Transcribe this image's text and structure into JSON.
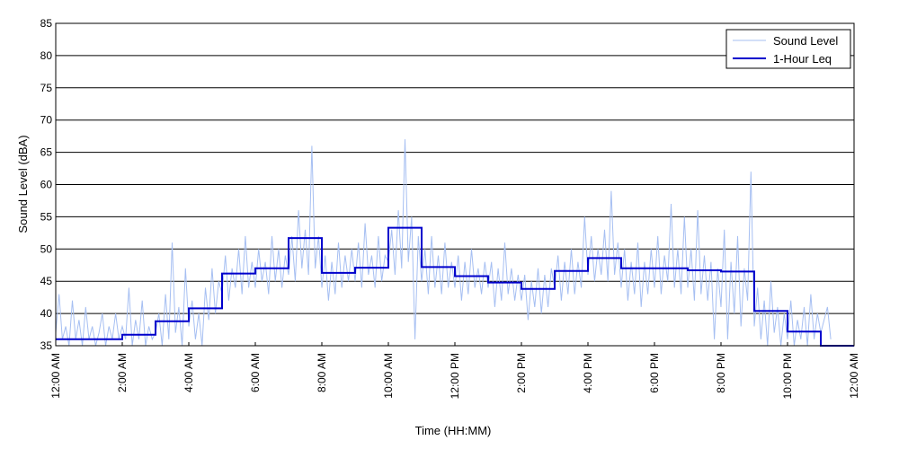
{
  "colors": {
    "background": "#ffffff",
    "grid": "#000000",
    "raw_series": "#a6bff2",
    "leq_series": "#0000cc"
  },
  "chart_data": {
    "type": "line",
    "title": "",
    "xlabel": "Time (HH:MM)",
    "ylabel": "Sound Level (dBA)",
    "xlim": [
      0,
      24
    ],
    "ylim": [
      35,
      85
    ],
    "grid": "horizontal",
    "legend_position": "top-right",
    "y_ticks": [
      35,
      40,
      45,
      50,
      55,
      60,
      65,
      70,
      75,
      80,
      85
    ],
    "x_ticks": [
      {
        "hour": 0,
        "label": "12:00 AM"
      },
      {
        "hour": 2,
        "label": "2:00 AM"
      },
      {
        "hour": 4,
        "label": "4:00 AM"
      },
      {
        "hour": 6,
        "label": "6:00 AM"
      },
      {
        "hour": 8,
        "label": "8:00 AM"
      },
      {
        "hour": 10,
        "label": "10:00 AM"
      },
      {
        "hour": 12,
        "label": "12:00 PM"
      },
      {
        "hour": 14,
        "label": "2:00 PM"
      },
      {
        "hour": 16,
        "label": "4:00 PM"
      },
      {
        "hour": 18,
        "label": "6:00 PM"
      },
      {
        "hour": 20,
        "label": "8:00 PM"
      },
      {
        "hour": 22,
        "label": "10:00 PM"
      },
      {
        "hour": 24,
        "label": "12:00 AM"
      }
    ],
    "series": [
      {
        "name": "Sound Level",
        "kind": "raw",
        "note": "approximate envelope samples (hour, dBA) of the fluctuating measurement trace",
        "points": [
          [
            0.0,
            37
          ],
          [
            0.1,
            43
          ],
          [
            0.2,
            36
          ],
          [
            0.3,
            38
          ],
          [
            0.4,
            35
          ],
          [
            0.5,
            42
          ],
          [
            0.6,
            36
          ],
          [
            0.7,
            39
          ],
          [
            0.8,
            35
          ],
          [
            0.9,
            41
          ],
          [
            1.0,
            36
          ],
          [
            1.1,
            38
          ],
          [
            1.2,
            35
          ],
          [
            1.3,
            37
          ],
          [
            1.4,
            40
          ],
          [
            1.5,
            35
          ],
          [
            1.6,
            38
          ],
          [
            1.7,
            36
          ],
          [
            1.8,
            40
          ],
          [
            1.9,
            36
          ],
          [
            2.0,
            38
          ],
          [
            2.1,
            36
          ],
          [
            2.2,
            44
          ],
          [
            2.3,
            35
          ],
          [
            2.4,
            39
          ],
          [
            2.5,
            36
          ],
          [
            2.6,
            42
          ],
          [
            2.7,
            35
          ],
          [
            2.8,
            38
          ],
          [
            2.9,
            36
          ],
          [
            3.0,
            37
          ],
          [
            3.1,
            40
          ],
          [
            3.2,
            35
          ],
          [
            3.3,
            43
          ],
          [
            3.4,
            36
          ],
          [
            3.5,
            51
          ],
          [
            3.6,
            37
          ],
          [
            3.7,
            41
          ],
          [
            3.8,
            35
          ],
          [
            3.9,
            47
          ],
          [
            4.0,
            38
          ],
          [
            4.1,
            42
          ],
          [
            4.2,
            36
          ],
          [
            4.3,
            40
          ],
          [
            4.4,
            35
          ],
          [
            4.5,
            44
          ],
          [
            4.6,
            39
          ],
          [
            4.7,
            47
          ],
          [
            4.8,
            40
          ],
          [
            4.9,
            45
          ],
          [
            5.0,
            43
          ],
          [
            5.1,
            49
          ],
          [
            5.2,
            42
          ],
          [
            5.3,
            47
          ],
          [
            5.4,
            44
          ],
          [
            5.5,
            50
          ],
          [
            5.6,
            43
          ],
          [
            5.7,
            52
          ],
          [
            5.8,
            44
          ],
          [
            5.9,
            48
          ],
          [
            6.0,
            44
          ],
          [
            6.1,
            50
          ],
          [
            6.2,
            45
          ],
          [
            6.3,
            48
          ],
          [
            6.4,
            43
          ],
          [
            6.5,
            52
          ],
          [
            6.6,
            45
          ],
          [
            6.7,
            50
          ],
          [
            6.8,
            44
          ],
          [
            6.9,
            49
          ],
          [
            7.0,
            46
          ],
          [
            7.1,
            52
          ],
          [
            7.2,
            45
          ],
          [
            7.3,
            56
          ],
          [
            7.4,
            47
          ],
          [
            7.5,
            53
          ],
          [
            7.6,
            46
          ],
          [
            7.7,
            66
          ],
          [
            7.8,
            47
          ],
          [
            7.9,
            52
          ],
          [
            8.0,
            44
          ],
          [
            8.1,
            49
          ],
          [
            8.2,
            42
          ],
          [
            8.3,
            48
          ],
          [
            8.4,
            43
          ],
          [
            8.5,
            51
          ],
          [
            8.6,
            44
          ],
          [
            8.7,
            49
          ],
          [
            8.8,
            45
          ],
          [
            8.9,
            50
          ],
          [
            9.0,
            45
          ],
          [
            9.1,
            51
          ],
          [
            9.2,
            44
          ],
          [
            9.3,
            54
          ],
          [
            9.4,
            46
          ],
          [
            9.5,
            49
          ],
          [
            9.6,
            44
          ],
          [
            9.7,
            52
          ],
          [
            9.8,
            45
          ],
          [
            9.9,
            49
          ],
          [
            10.0,
            48
          ],
          [
            10.1,
            53
          ],
          [
            10.2,
            46
          ],
          [
            10.3,
            56
          ],
          [
            10.4,
            47
          ],
          [
            10.5,
            67
          ],
          [
            10.6,
            48
          ],
          [
            10.7,
            55
          ],
          [
            10.8,
            36
          ],
          [
            10.9,
            52
          ],
          [
            11.0,
            45
          ],
          [
            11.1,
            50
          ],
          [
            11.2,
            43
          ],
          [
            11.3,
            52
          ],
          [
            11.4,
            44
          ],
          [
            11.5,
            49
          ],
          [
            11.6,
            43
          ],
          [
            11.7,
            51
          ],
          [
            11.8,
            44
          ],
          [
            11.9,
            48
          ],
          [
            12.0,
            44
          ],
          [
            12.1,
            49
          ],
          [
            12.2,
            42
          ],
          [
            12.3,
            48
          ],
          [
            12.4,
            43
          ],
          [
            12.5,
            50
          ],
          [
            12.6,
            44
          ],
          [
            12.7,
            47
          ],
          [
            12.8,
            43
          ],
          [
            12.9,
            48
          ],
          [
            13.0,
            44
          ],
          [
            13.1,
            48
          ],
          [
            13.2,
            41
          ],
          [
            13.3,
            47
          ],
          [
            13.4,
            42
          ],
          [
            13.5,
            51
          ],
          [
            13.6,
            43
          ],
          [
            13.7,
            47
          ],
          [
            13.8,
            42
          ],
          [
            13.9,
            46
          ],
          [
            14.0,
            42
          ],
          [
            14.1,
            46
          ],
          [
            14.2,
            39
          ],
          [
            14.3,
            45
          ],
          [
            14.4,
            41
          ],
          [
            14.5,
            47
          ],
          [
            14.6,
            40
          ],
          [
            14.7,
            46
          ],
          [
            14.8,
            41
          ],
          [
            14.9,
            47
          ],
          [
            15.0,
            44
          ],
          [
            15.1,
            49
          ],
          [
            15.2,
            42
          ],
          [
            15.3,
            48
          ],
          [
            15.4,
            43
          ],
          [
            15.5,
            50
          ],
          [
            15.6,
            43
          ],
          [
            15.7,
            48
          ],
          [
            15.8,
            44
          ],
          [
            15.9,
            55
          ],
          [
            16.0,
            46
          ],
          [
            16.1,
            52
          ],
          [
            16.2,
            45
          ],
          [
            16.3,
            50
          ],
          [
            16.4,
            46
          ],
          [
            16.5,
            53
          ],
          [
            16.6,
            45
          ],
          [
            16.7,
            59
          ],
          [
            16.8,
            46
          ],
          [
            16.9,
            51
          ],
          [
            17.0,
            44
          ],
          [
            17.1,
            50
          ],
          [
            17.2,
            42
          ],
          [
            17.3,
            48
          ],
          [
            17.4,
            43
          ],
          [
            17.5,
            51
          ],
          [
            17.6,
            41
          ],
          [
            17.7,
            48
          ],
          [
            17.8,
            43
          ],
          [
            17.9,
            50
          ],
          [
            18.0,
            44
          ],
          [
            18.1,
            52
          ],
          [
            18.2,
            43
          ],
          [
            18.3,
            49
          ],
          [
            18.4,
            45
          ],
          [
            18.5,
            57
          ],
          [
            18.6,
            44
          ],
          [
            18.7,
            50
          ],
          [
            18.8,
            43
          ],
          [
            18.9,
            55
          ],
          [
            19.0,
            44
          ],
          [
            19.1,
            50
          ],
          [
            19.2,
            42
          ],
          [
            19.3,
            56
          ],
          [
            19.4,
            43
          ],
          [
            19.5,
            49
          ],
          [
            19.6,
            42
          ],
          [
            19.7,
            48
          ],
          [
            19.8,
            36
          ],
          [
            19.9,
            47
          ],
          [
            20.0,
            41
          ],
          [
            20.1,
            53
          ],
          [
            20.2,
            36
          ],
          [
            20.3,
            48
          ],
          [
            20.4,
            40
          ],
          [
            20.5,
            52
          ],
          [
            20.6,
            38
          ],
          [
            20.7,
            47
          ],
          [
            20.8,
            42
          ],
          [
            20.9,
            62
          ],
          [
            21.0,
            38
          ],
          [
            21.1,
            44
          ],
          [
            21.2,
            36
          ],
          [
            21.3,
            42
          ],
          [
            21.4,
            35
          ],
          [
            21.5,
            45
          ],
          [
            21.6,
            37
          ],
          [
            21.7,
            41
          ],
          [
            21.8,
            35
          ],
          [
            21.9,
            40
          ],
          [
            22.0,
            36
          ],
          [
            22.1,
            42
          ],
          [
            22.2,
            35
          ],
          [
            22.3,
            39
          ],
          [
            22.4,
            36
          ],
          [
            22.5,
            41
          ],
          [
            22.6,
            35
          ],
          [
            22.7,
            43
          ],
          [
            22.8,
            36
          ],
          [
            22.9,
            40
          ],
          [
            23.0,
            37
          ],
          [
            23.2,
            41
          ],
          [
            23.3,
            36
          ]
        ]
      },
      {
        "name": "1-Hour Leq",
        "kind": "step",
        "hourly_values": [
          36.0,
          36.0,
          36.7,
          38.8,
          40.8,
          46.2,
          47.0,
          51.7,
          46.3,
          47.1,
          53.3,
          47.2,
          45.8,
          44.8,
          43.8,
          46.6,
          48.6,
          47.0,
          47.0,
          46.7,
          46.5,
          40.4,
          37.2,
          35.0
        ]
      }
    ]
  }
}
